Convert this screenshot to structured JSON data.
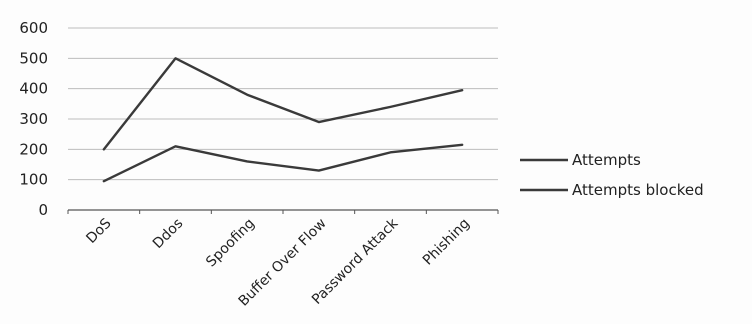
{
  "chart_data": {
    "type": "line",
    "categories": [
      "DoS",
      "Ddos",
      "Spoofing",
      "Buffer Over Flow",
      "Password Attack",
      "Phishing"
    ],
    "series": [
      {
        "name": "Attempts",
        "values": [
          200,
          500,
          380,
          290,
          340,
          395
        ],
        "color": "#3a3a3a"
      },
      {
        "name": "Attempts blocked",
        "values": [
          95,
          210,
          160,
          130,
          190,
          215
        ],
        "color": "#3a3a3a"
      }
    ],
    "yticks": [
      "0",
      "100",
      "200",
      "300",
      "400",
      "500",
      "600"
    ],
    "ylim": [
      0,
      600
    ],
    "grid": true,
    "legend": "right"
  }
}
